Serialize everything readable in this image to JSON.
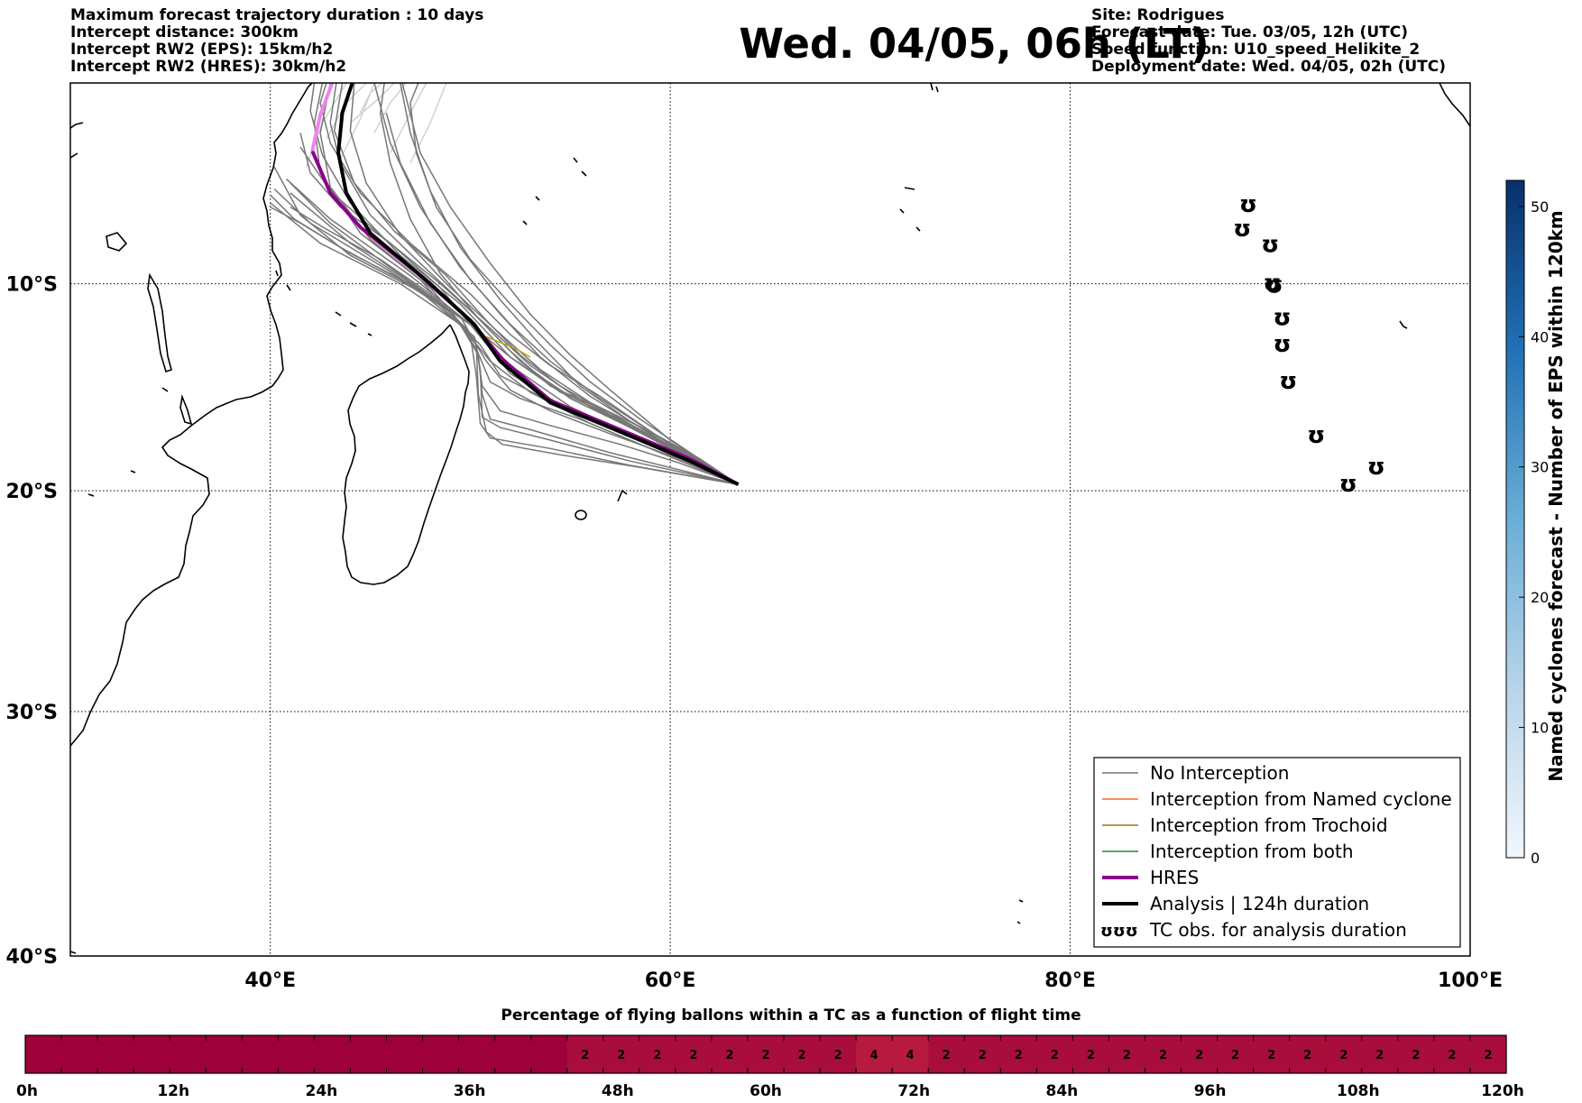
{
  "header_left": [
    "Maximum forecast trajectory duration : 10 days",
    "Intercept distance: 300km",
    "Intercept RW2 (EPS):  15km/h2",
    "Intercept RW2 (HRES): 30km/h2"
  ],
  "header_right": [
    "Site: Rodrigues",
    "Forecast date: Tue. 03/05, 12h (UTC)",
    "Speed function: U10_speed_Helikite_2",
    "Deployment date: Wed. 04/05, 02h (UTC)"
  ],
  "title": "Wed. 04/05, 06h (LT)",
  "map": {
    "lon_range": [
      30,
      100
    ],
    "lat_range": [
      -40,
      0
    ],
    "lon_ticks": [
      {
        "value": 40,
        "label": "40°E"
      },
      {
        "value": 60,
        "label": "60°E"
      },
      {
        "value": 80,
        "label": "80°E"
      },
      {
        "value": 100,
        "label": "100°E"
      }
    ],
    "lat_ticks": [
      {
        "value": -10,
        "label": "10°S"
      },
      {
        "value": -20,
        "label": "20°S"
      },
      {
        "value": -30,
        "label": "30°S"
      },
      {
        "value": -40,
        "label": "40°S"
      }
    ],
    "grid": true,
    "origin_site": {
      "lon": 63.4,
      "lat": -19.7
    },
    "analysis_track": [
      [
        63.4,
        -19.7
      ],
      [
        61,
        -18.6
      ],
      [
        58,
        -17.4
      ],
      [
        54,
        -15.8
      ],
      [
        51.5,
        -13.8
      ],
      [
        50.2,
        -12.0
      ],
      [
        48,
        -10.0
      ],
      [
        45,
        -7.5
      ],
      [
        43.8,
        -5.5
      ],
      [
        43.4,
        -3.5
      ],
      [
        43.6,
        -1.5
      ],
      [
        44.1,
        0
      ]
    ],
    "hres_track": [
      [
        63.4,
        -19.7
      ],
      [
        61,
        -18.5
      ],
      [
        58,
        -17.3
      ],
      [
        54,
        -15.7
      ],
      [
        51.6,
        -13.7
      ],
      [
        50.0,
        -11.8
      ],
      [
        47.5,
        -9.6
      ],
      [
        44.5,
        -7.2
      ],
      [
        43.0,
        -5.5
      ],
      [
        42.1,
        -3.4
      ]
    ],
    "hres_extension": [
      [
        42.1,
        -3.4
      ],
      [
        42.5,
        -1.6
      ],
      [
        43.1,
        0
      ]
    ],
    "ensemble_tracks": [
      [
        [
          63.4,
          -19.7
        ],
        [
          59,
          -17.4
        ],
        [
          55,
          -15.5
        ],
        [
          52,
          -13.6
        ],
        [
          50,
          -12
        ],
        [
          47,
          -9.6
        ],
        [
          43,
          -6.8
        ],
        [
          40.8,
          -4.8
        ]
      ],
      [
        [
          63.4,
          -19.7
        ],
        [
          59,
          -17.8
        ],
        [
          55,
          -16
        ],
        [
          52,
          -14
        ],
        [
          50,
          -12
        ],
        [
          46,
          -9.4
        ],
        [
          42,
          -7
        ],
        [
          40.2,
          -5.3
        ]
      ],
      [
        [
          63.4,
          -19.7
        ],
        [
          58.5,
          -17.6
        ],
        [
          54.5,
          -16
        ],
        [
          51.5,
          -14.5
        ],
        [
          50.5,
          -13
        ],
        [
          48,
          -10.6
        ],
        [
          44,
          -8
        ],
        [
          41,
          -5.5
        ]
      ],
      [
        [
          63.4,
          -19.7
        ],
        [
          60,
          -18
        ],
        [
          56,
          -16
        ],
        [
          53,
          -14
        ],
        [
          51,
          -12.2
        ],
        [
          48.5,
          -10
        ],
        [
          45.5,
          -7.6
        ],
        [
          43,
          -5.4
        ],
        [
          41.5,
          -3.2
        ]
      ],
      [
        [
          63.4,
          -19.7
        ],
        [
          60,
          -17.8
        ],
        [
          56.5,
          -15.6
        ],
        [
          54,
          -13.8
        ],
        [
          52,
          -12
        ],
        [
          50,
          -9.8
        ],
        [
          48,
          -7
        ],
        [
          46.5,
          -4
        ],
        [
          45.8,
          -1.5
        ]
      ],
      [
        [
          63.4,
          -19.7
        ],
        [
          60,
          -17.6
        ],
        [
          57,
          -15.2
        ],
        [
          55,
          -13.5
        ],
        [
          53,
          -11.5
        ],
        [
          51,
          -9
        ],
        [
          49,
          -6.2
        ],
        [
          47.5,
          -3.5
        ],
        [
          46.6,
          0
        ]
      ],
      [
        [
          63.4,
          -19.7
        ],
        [
          59.5,
          -17.6
        ],
        [
          56,
          -15.5
        ],
        [
          53.5,
          -13.6
        ],
        [
          51.5,
          -11.5
        ],
        [
          49.5,
          -9.2
        ],
        [
          47.5,
          -6.2
        ],
        [
          46,
          -3
        ],
        [
          45.2,
          0
        ]
      ],
      [
        [
          63.4,
          -19.7
        ],
        [
          59,
          -17.8
        ],
        [
          55,
          -16.2
        ],
        [
          52,
          -14.4
        ],
        [
          50.5,
          -12.6
        ],
        [
          48.5,
          -10.2
        ],
        [
          46,
          -8
        ],
        [
          43.5,
          -6.2
        ],
        [
          42,
          -4.5
        ],
        [
          41.5,
          -2.5
        ]
      ],
      [
        [
          63.4,
          -19.7
        ],
        [
          58,
          -18.8
        ],
        [
          54,
          -18
        ],
        [
          51,
          -17.5
        ],
        [
          50.5,
          -16.8
        ],
        [
          50.3,
          -14.5
        ],
        [
          50,
          -12.5
        ],
        [
          48,
          -10.2
        ],
        [
          45,
          -7.8
        ],
        [
          43,
          -5.2
        ],
        [
          42.5,
          -2.5
        ],
        [
          43,
          0
        ]
      ],
      [
        [
          63.4,
          -19.7
        ],
        [
          58,
          -18.6
        ],
        [
          54,
          -17.6
        ],
        [
          51.5,
          -17
        ],
        [
          50.6,
          -16.5
        ],
        [
          50.5,
          -14.2
        ],
        [
          50.2,
          -12.6
        ],
        [
          47.5,
          -10.4
        ],
        [
          44,
          -8.6
        ],
        [
          41.5,
          -6.6
        ],
        [
          40.2,
          -4.2
        ]
      ],
      [
        [
          63.4,
          -19.7
        ],
        [
          57,
          -18.2
        ],
        [
          53,
          -17.1
        ],
        [
          51,
          -16.6
        ],
        [
          50.6,
          -15.4
        ],
        [
          50.4,
          -13.5
        ],
        [
          49.5,
          -12
        ],
        [
          46.5,
          -10
        ],
        [
          42.5,
          -8
        ],
        [
          40,
          -6
        ]
      ],
      [
        [
          63.4,
          -19.7
        ],
        [
          59,
          -18
        ],
        [
          55.5,
          -16.6
        ],
        [
          52.5,
          -15.6
        ],
        [
          51,
          -14.8
        ],
        [
          50.3,
          -13.2
        ],
        [
          49,
          -11.3
        ],
        [
          46,
          -9.2
        ],
        [
          43,
          -7
        ],
        [
          41,
          -5
        ]
      ],
      [
        [
          63.4,
          -19.7
        ],
        [
          59.5,
          -17.5
        ],
        [
          56.5,
          -15.5
        ],
        [
          54,
          -14
        ],
        [
          52,
          -12.5
        ],
        [
          50,
          -10.5
        ],
        [
          47,
          -8
        ],
        [
          44.5,
          -5.5
        ],
        [
          43,
          -3
        ],
        [
          42.5,
          -1
        ],
        [
          42.8,
          0
        ]
      ],
      [
        [
          63.4,
          -19.7
        ],
        [
          60,
          -17.9
        ],
        [
          57,
          -16.3
        ],
        [
          54,
          -15
        ],
        [
          52,
          -13.3
        ],
        [
          50,
          -11.3
        ],
        [
          47.5,
          -9
        ],
        [
          45,
          -6.6
        ],
        [
          43.5,
          -4
        ],
        [
          43,
          -2
        ],
        [
          43.3,
          0
        ]
      ],
      [
        [
          63.4,
          -19.7
        ],
        [
          60.5,
          -18.1
        ],
        [
          57.5,
          -16.6
        ],
        [
          54.5,
          -15.3
        ],
        [
          52,
          -13.6
        ],
        [
          49.5,
          -11
        ],
        [
          46.5,
          -8.6
        ],
        [
          44,
          -6
        ],
        [
          42.6,
          -3.6
        ],
        [
          42,
          -1.4
        ],
        [
          42.2,
          0
        ]
      ],
      [
        [
          63.4,
          -19.7
        ],
        [
          61,
          -18.4
        ],
        [
          58,
          -17
        ],
        [
          55,
          -15.6
        ],
        [
          52.5,
          -13.8
        ],
        [
          50.5,
          -11.8
        ],
        [
          48.5,
          -9.5
        ],
        [
          47,
          -6.8
        ],
        [
          46,
          -4
        ],
        [
          45.5,
          -1.5
        ],
        [
          45.7,
          0
        ]
      ],
      [
        [
          63.4,
          -19.7
        ],
        [
          61,
          -18.3
        ],
        [
          58,
          -16.7
        ],
        [
          55.5,
          -15
        ],
        [
          53.5,
          -13
        ],
        [
          51.5,
          -10.8
        ],
        [
          49.5,
          -8.2
        ],
        [
          48,
          -5.4
        ],
        [
          47,
          -2.5
        ],
        [
          46.5,
          0
        ]
      ],
      [
        [
          63.4,
          -19.7
        ],
        [
          60.5,
          -18.5
        ],
        [
          57,
          -17.3
        ],
        [
          54,
          -16.2
        ],
        [
          52,
          -15.2
        ],
        [
          50.8,
          -13.8
        ],
        [
          49.8,
          -12.2
        ],
        [
          48,
          -10.5
        ],
        [
          45.5,
          -8.8
        ],
        [
          42.8,
          -7.3
        ],
        [
          41,
          -6.2
        ]
      ],
      [
        [
          63.4,
          -19.7
        ],
        [
          60.5,
          -18.7
        ],
        [
          57.5,
          -17.8
        ],
        [
          54,
          -16.9
        ],
        [
          51.5,
          -16.2
        ],
        [
          50.6,
          -15
        ],
        [
          50.3,
          -13
        ],
        [
          49,
          -11.4
        ],
        [
          46.5,
          -9.8
        ],
        [
          43.5,
          -8.2
        ],
        [
          41.2,
          -6.8
        ],
        [
          40,
          -5.6
        ]
      ],
      [
        [
          63.4,
          -19.7
        ],
        [
          61,
          -18.2
        ],
        [
          58.5,
          -16.6
        ],
        [
          56,
          -14.8
        ],
        [
          54,
          -13
        ],
        [
          52,
          -11
        ],
        [
          50,
          -8.8
        ],
        [
          48.3,
          -6.2
        ],
        [
          47.3,
          -3.5
        ],
        [
          47,
          -1
        ],
        [
          47.4,
          0
        ]
      ],
      [
        [
          63.4,
          -19.7
        ],
        [
          59.5,
          -18.2
        ],
        [
          56,
          -16.8
        ],
        [
          53,
          -15.3
        ],
        [
          51,
          -13.8
        ],
        [
          49.5,
          -12
        ],
        [
          47.5,
          -9.8
        ],
        [
          44.5,
          -7.5
        ],
        [
          42.5,
          -4.5
        ],
        [
          42.2,
          -2
        ],
        [
          42.6,
          0
        ]
      ],
      [
        [
          63.4,
          -19.7
        ],
        [
          60,
          -18
        ],
        [
          57,
          -16.4
        ],
        [
          54.5,
          -15
        ],
        [
          52.5,
          -13.5
        ],
        [
          50.8,
          -11.8
        ],
        [
          48.8,
          -9.6
        ],
        [
          46.2,
          -7.4
        ],
        [
          44.2,
          -5
        ],
        [
          43.2,
          -2.4
        ],
        [
          43.6,
          0
        ]
      ],
      [
        [
          63.4,
          -19.7
        ],
        [
          58.5,
          -18.9
        ],
        [
          54.5,
          -18.3
        ],
        [
          51.6,
          -17.8
        ],
        [
          50.8,
          -17.2
        ],
        [
          50.4,
          -15.4
        ],
        [
          50.3,
          -13
        ],
        [
          49.5,
          -11.6
        ],
        [
          47,
          -10
        ],
        [
          44,
          -8.5
        ],
        [
          41.5,
          -7
        ],
        [
          40,
          -6.2
        ]
      ],
      [
        [
          63.4,
          -19.7
        ],
        [
          61.5,
          -18.5
        ],
        [
          59,
          -17.2
        ],
        [
          56,
          -15.8
        ],
        [
          53.5,
          -14.2
        ],
        [
          51.2,
          -12.2
        ],
        [
          48.8,
          -10
        ],
        [
          46.5,
          -7.6
        ],
        [
          44.8,
          -5
        ],
        [
          44,
          -2.4
        ],
        [
          44.2,
          0
        ]
      ]
    ],
    "light_tracks": [
      [
        [
          44.5,
          -1.5
        ],
        [
          45,
          -0.5
        ],
        [
          45.6,
          0
        ]
      ],
      [
        [
          45.2,
          -2.5
        ],
        [
          46,
          -1
        ],
        [
          46.8,
          0
        ]
      ],
      [
        [
          42.8,
          -2.8
        ],
        [
          43.8,
          -1
        ],
        [
          44.8,
          0
        ]
      ],
      [
        [
          43.5,
          -3.8
        ],
        [
          44.5,
          -1.8
        ],
        [
          45.2,
          0
        ]
      ],
      [
        [
          46,
          -3.5
        ],
        [
          47,
          -1.5
        ],
        [
          47.8,
          0
        ]
      ],
      [
        [
          41.8,
          -4.2
        ],
        [
          42.6,
          -2
        ],
        [
          43.8,
          0
        ]
      ],
      [
        [
          47,
          -4
        ],
        [
          48,
          -2
        ],
        [
          48.8,
          0
        ]
      ],
      [
        [
          44,
          -2
        ],
        [
          45.4,
          -0.8
        ],
        [
          46.2,
          0
        ]
      ]
    ],
    "trochoid_segment": [
      [
        50.8,
        -12.6
      ],
      [
        52.3,
        -13.2
      ],
      [
        53,
        -13.6
      ]
    ],
    "tc_obs": [
      {
        "lon": 88.9,
        "lat": -6.0
      },
      {
        "lon": 88.6,
        "lat": -7.2
      },
      {
        "lon": 90.0,
        "lat": -8.0
      },
      {
        "lon": 90.1,
        "lat": -9.9
      },
      {
        "lon": 90.2,
        "lat": -10.0
      },
      {
        "lon": 90.6,
        "lat": -11.6
      },
      {
        "lon": 90.6,
        "lat": -12.9
      },
      {
        "lon": 90.9,
        "lat": -14.7
      },
      {
        "lon": 92.3,
        "lat": -17.3
      },
      {
        "lon": 93.9,
        "lat": -19.6
      },
      {
        "lon": 95.3,
        "lat": -18.8
      }
    ]
  },
  "legend": [
    {
      "label": "No Interception",
      "color": "#777777",
      "width": 1.5,
      "kind": "line"
    },
    {
      "label": "Interception from Named cyclone",
      "color": "#ff6a1a",
      "width": 1.5,
      "kind": "line"
    },
    {
      "label": "Interception from Trochoid",
      "color": "#8b7d1e",
      "width": 1.5,
      "kind": "line"
    },
    {
      "label": "Interception from both",
      "color": "#1f8f1f",
      "width": 1.5,
      "kind": "line"
    },
    {
      "label": "HRES",
      "color": "#8b008b",
      "width": 4,
      "kind": "line"
    },
    {
      "label": "Analysis | 124h duration",
      "color": "#000000",
      "width": 4,
      "kind": "line"
    },
    {
      "label": "TC obs. for analysis duration",
      "color": "#000000",
      "kind": "tc-symbols",
      "symbol": "ʊʊʊ"
    }
  ],
  "colorbar": {
    "label": "Named cyclones forecast - Number of EPS within 120km",
    "min": 0,
    "max": 52,
    "ticks": [
      "0",
      "10",
      "20",
      "30",
      "40",
      "50"
    ],
    "color_low": "#deebf7",
    "color_high": "#08306b"
  },
  "flight_bar": {
    "title": "Percentage of flying ballons within a TC as a function of flight time",
    "cells": [
      0,
      0,
      0,
      0,
      0,
      0,
      0,
      0,
      0,
      0,
      0,
      0,
      0,
      0,
      0,
      2,
      2,
      2,
      2,
      2,
      2,
      2,
      2,
      4,
      4,
      2,
      2,
      2,
      2,
      2,
      2,
      2,
      2,
      2,
      2,
      2,
      2,
      2,
      2,
      2,
      2
    ],
    "tick_labels": [
      "0h",
      "12h",
      "24h",
      "36h",
      "48h",
      "60h",
      "72h",
      "84h",
      "96h",
      "108h",
      "120h"
    ],
    "colors": {
      "0": "#9e003a",
      "2": "#a80d3c",
      "4": "#b8193f"
    }
  }
}
